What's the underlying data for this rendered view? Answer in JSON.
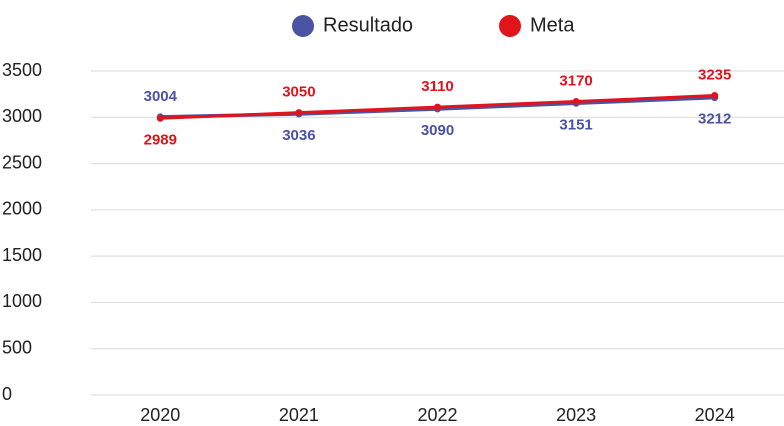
{
  "chart_data": {
    "type": "line",
    "categories": [
      "2020",
      "2021",
      "2022",
      "2023",
      "2024"
    ],
    "series": [
      {
        "name": "Resultado",
        "color": "#4a52a3",
        "values": [
          3004,
          3036,
          3090,
          3151,
          3212
        ]
      },
      {
        "name": "Meta",
        "color": "#e1131b",
        "values": [
          2989,
          3050,
          3110,
          3170,
          3235
        ]
      }
    ],
    "ylim": [
      0,
      3500
    ],
    "yticks": [
      0,
      500,
      1000,
      1500,
      2000,
      2500,
      3000,
      3500
    ],
    "grid": true,
    "legend": "top"
  }
}
